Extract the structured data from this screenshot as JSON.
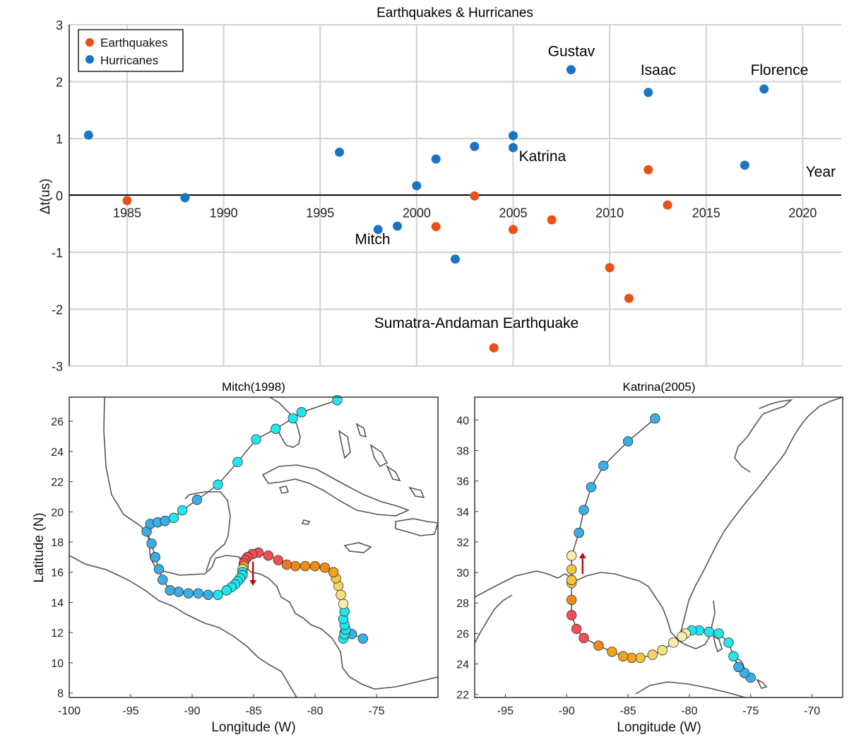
{
  "chart_data": [
    {
      "type": "scatter",
      "title": "Earthquakes & Hurricanes",
      "xlabel": "Year",
      "ylabel": "Δt(us)",
      "xlim": [
        1982,
        2022
      ],
      "ylim": [
        -3,
        3
      ],
      "xticks": [
        1985,
        1990,
        1995,
        2000,
        2005,
        2010,
        2015,
        2020
      ],
      "yticks": [
        -3,
        -2,
        -1,
        0,
        1,
        2,
        3
      ],
      "grid": true,
      "legend_position": "top-left",
      "series": [
        {
          "name": "Earthquakes",
          "color": "#e8511a",
          "points": [
            {
              "x": 1985,
              "y": -0.09
            },
            {
              "x": 2001,
              "y": -0.55
            },
            {
              "x": 2003,
              "y": -0.01
            },
            {
              "x": 2004,
              "y": -2.68
            },
            {
              "x": 2005,
              "y": -0.6
            },
            {
              "x": 2007,
              "y": -0.43
            },
            {
              "x": 2010,
              "y": -1.27
            },
            {
              "x": 2011,
              "y": -1.81
            },
            {
              "x": 2012,
              "y": 0.45
            },
            {
              "x": 2013,
              "y": -0.17
            }
          ]
        },
        {
          "name": "Hurricanes",
          "color": "#1a74c2",
          "points": [
            {
              "x": 1983,
              "y": 1.06
            },
            {
              "x": 1988,
              "y": -0.04
            },
            {
              "x": 1996,
              "y": 0.76
            },
            {
              "x": 1998,
              "y": -0.6
            },
            {
              "x": 1999,
              "y": -0.54
            },
            {
              "x": 2000,
              "y": 0.17
            },
            {
              "x": 2001,
              "y": 0.64
            },
            {
              "x": 2002,
              "y": -1.12
            },
            {
              "x": 2003,
              "y": 0.86
            },
            {
              "x": 2005,
              "y": 1.05
            },
            {
              "x": 2005,
              "y": 0.84
            },
            {
              "x": 2008,
              "y": 2.21
            },
            {
              "x": 2012,
              "y": 1.81
            },
            {
              "x": 2017,
              "y": 0.53
            },
            {
              "x": 2018,
              "y": 1.87
            }
          ]
        }
      ],
      "annotations": [
        {
          "text": "Gustav",
          "x": 2006.8,
          "y": 2.45
        },
        {
          "text": "Isaac",
          "x": 2011.6,
          "y": 2.12
        },
        {
          "text": "Florence",
          "x": 2017.3,
          "y": 2.12
        },
        {
          "text": "Katrina",
          "x": 2005.3,
          "y": 0.6
        },
        {
          "text": "Mitch",
          "x": 1996.8,
          "y": -0.86
        },
        {
          "text": "Sumatra-Andaman Earthquake",
          "x": 1997.8,
          "y": -2.33
        }
      ]
    },
    {
      "type": "line",
      "title": "Mitch(1998)",
      "xlabel": "Longitude (W)",
      "ylabel": "Latitude (N)",
      "xlim": [
        -100,
        -70
      ],
      "ylim": [
        7.7,
        27.6
      ],
      "xticks": [
        -100,
        -95,
        -90,
        -85,
        -80,
        -75
      ],
      "yticks": [
        8,
        10,
        12,
        14,
        16,
        18,
        20,
        22,
        24,
        26
      ],
      "direction_arrow": {
        "x": -85.05,
        "from_y": 16.7,
        "to_y": 15.1
      },
      "track": [
        {
          "lon": -76.1,
          "lat": 11.6,
          "color": "#3aaee6"
        },
        {
          "lon": -77.0,
          "lat": 11.9,
          "color": "#3aaee6"
        },
        {
          "lon": -77.6,
          "lat": 12.0,
          "color": "#3aaee6"
        },
        {
          "lon": -77.7,
          "lat": 11.6,
          "color": "#22e6ee"
        },
        {
          "lon": -77.6,
          "lat": 11.9,
          "color": "#22e6ee"
        },
        {
          "lon": -77.5,
          "lat": 12.2,
          "color": "#22e6ee"
        },
        {
          "lon": -77.6,
          "lat": 12.5,
          "color": "#22e6ee"
        },
        {
          "lon": -77.7,
          "lat": 12.9,
          "color": "#22e6ee"
        },
        {
          "lon": -77.6,
          "lat": 13.4,
          "color": "#22e6ee"
        },
        {
          "lon": -77.7,
          "lat": 13.9,
          "color": "#f7eeae"
        },
        {
          "lon": -77.9,
          "lat": 14.5,
          "color": "#f7e27a"
        },
        {
          "lon": -78.1,
          "lat": 15.1,
          "color": "#f7d36a"
        },
        {
          "lon": -78.3,
          "lat": 15.6,
          "color": "#f6c43c"
        },
        {
          "lon": -78.5,
          "lat": 16.0,
          "color": "#f3a21b"
        },
        {
          "lon": -79.2,
          "lat": 16.3,
          "color": "#f08a12"
        },
        {
          "lon": -80.0,
          "lat": 16.4,
          "color": "#f08a12"
        },
        {
          "lon": -80.8,
          "lat": 16.4,
          "color": "#f08a12"
        },
        {
          "lon": -81.6,
          "lat": 16.4,
          "color": "#f08a12"
        },
        {
          "lon": -82.3,
          "lat": 16.5,
          "color": "#f07828"
        },
        {
          "lon": -83.0,
          "lat": 16.8,
          "color": "#f24f55"
        },
        {
          "lon": -83.8,
          "lat": 17.1,
          "color": "#f24f55"
        },
        {
          "lon": -84.6,
          "lat": 17.3,
          "color": "#f24f55"
        },
        {
          "lon": -85.1,
          "lat": 17.2,
          "color": "#f24f55"
        },
        {
          "lon": -85.5,
          "lat": 17.0,
          "color": "#f24f55"
        },
        {
          "lon": -85.7,
          "lat": 16.8,
          "color": "#f24f55"
        },
        {
          "lon": -85.8,
          "lat": 16.6,
          "color": "#f24f55"
        },
        {
          "lon": -85.8,
          "lat": 16.4,
          "color": "#f3a21b"
        },
        {
          "lon": -85.9,
          "lat": 16.2,
          "color": "#f7e27a"
        },
        {
          "lon": -85.9,
          "lat": 16.0,
          "color": "#22e6ee"
        },
        {
          "lon": -85.9,
          "lat": 15.8,
          "color": "#22e6ee"
        },
        {
          "lon": -86.1,
          "lat": 15.6,
          "color": "#22e6ee"
        },
        {
          "lon": -86.3,
          "lat": 15.4,
          "color": "#22e6ee"
        },
        {
          "lon": -86.5,
          "lat": 15.2,
          "color": "#22e6ee"
        },
        {
          "lon": -86.8,
          "lat": 15.0,
          "color": "#22e6ee"
        },
        {
          "lon": -87.2,
          "lat": 14.8,
          "color": "#22e6ee"
        },
        {
          "lon": -87.9,
          "lat": 14.5,
          "color": "#22e6ee"
        },
        {
          "lon": -88.7,
          "lat": 14.5,
          "color": "#3aaee6"
        },
        {
          "lon": -89.5,
          "lat": 14.6,
          "color": "#3aaee6"
        },
        {
          "lon": -90.3,
          "lat": 14.6,
          "color": "#3aaee6"
        },
        {
          "lon": -91.1,
          "lat": 14.7,
          "color": "#3aaee6"
        },
        {
          "lon": -91.8,
          "lat": 14.8,
          "color": "#3aaee6"
        },
        {
          "lon": -92.4,
          "lat": 15.5,
          "color": "#3aaee6"
        },
        {
          "lon": -92.7,
          "lat": 16.2,
          "color": "#3aaee6"
        },
        {
          "lon": -93.0,
          "lat": 17.0,
          "color": "#3aaee6"
        },
        {
          "lon": -93.3,
          "lat": 17.9,
          "color": "#3aaee6"
        },
        {
          "lon": -93.7,
          "lat": 18.7,
          "color": "#3aaee6"
        },
        {
          "lon": -93.4,
          "lat": 19.2,
          "color": "#3aaee6"
        },
        {
          "lon": -92.8,
          "lat": 19.3,
          "color": "#3aaee6"
        },
        {
          "lon": -92.2,
          "lat": 19.4,
          "color": "#3aaee6"
        },
        {
          "lon": -91.5,
          "lat": 19.6,
          "color": "#22e6ee"
        },
        {
          "lon": -90.8,
          "lat": 20.1,
          "color": "#22e6ee"
        },
        {
          "lon": -89.6,
          "lat": 20.8,
          "color": "#3aaee6"
        },
        {
          "lon": -87.9,
          "lat": 21.8,
          "color": "#22e6ee"
        },
        {
          "lon": -86.3,
          "lat": 23.3,
          "color": "#22e6ee"
        },
        {
          "lon": -84.8,
          "lat": 24.8,
          "color": "#22e6ee"
        },
        {
          "lon": -83.2,
          "lat": 25.5,
          "color": "#22e6ee"
        },
        {
          "lon": -81.8,
          "lat": 26.2,
          "color": "#22e6ee"
        },
        {
          "lon": -81.1,
          "lat": 26.6,
          "color": "#22e6ee"
        },
        {
          "lon": -78.2,
          "lat": 27.4,
          "color": "#22e6ee"
        }
      ]
    },
    {
      "type": "line",
      "title": "Katrina(2005)",
      "xlabel": "Longitude (W)",
      "ylabel": "",
      "xlim": [
        -97.5,
        -67.5
      ],
      "ylim": [
        21.8,
        41.5
      ],
      "xticks": [
        -95,
        -90,
        -85,
        -80,
        -75,
        -70
      ],
      "yticks": [
        22,
        24,
        26,
        28,
        30,
        32,
        34,
        36,
        38,
        40
      ],
      "direction_arrow": {
        "x": -88.7,
        "from_y": 29.9,
        "to_y": 31.3
      },
      "track": [
        {
          "lon": -75.0,
          "lat": 23.1,
          "color": "#3aaee6"
        },
        {
          "lon": -75.5,
          "lat": 23.4,
          "color": "#3aaee6"
        },
        {
          "lon": -76.0,
          "lat": 23.8,
          "color": "#3aaee6"
        },
        {
          "lon": -76.4,
          "lat": 24.5,
          "color": "#22e6ee"
        },
        {
          "lon": -76.8,
          "lat": 25.4,
          "color": "#22e6ee"
        },
        {
          "lon": -77.6,
          "lat": 26.0,
          "color": "#22e6ee"
        },
        {
          "lon": -78.4,
          "lat": 26.1,
          "color": "#22e6ee"
        },
        {
          "lon": -79.2,
          "lat": 26.2,
          "color": "#22e6ee"
        },
        {
          "lon": -79.8,
          "lat": 26.2,
          "color": "#22e6ee"
        },
        {
          "lon": -80.3,
          "lat": 26.0,
          "color": "#f7eeae"
        },
        {
          "lon": -80.6,
          "lat": 25.8,
          "color": "#f7eeae"
        },
        {
          "lon": -81.3,
          "lat": 25.4,
          "color": "#f7eeae"
        },
        {
          "lon": -82.2,
          "lat": 24.9,
          "color": "#f7e27a"
        },
        {
          "lon": -83.0,
          "lat": 24.6,
          "color": "#f7d36a"
        },
        {
          "lon": -84.0,
          "lat": 24.4,
          "color": "#f6c43c"
        },
        {
          "lon": -84.7,
          "lat": 24.4,
          "color": "#f3a21b"
        },
        {
          "lon": -85.4,
          "lat": 24.5,
          "color": "#f3a21b"
        },
        {
          "lon": -86.3,
          "lat": 24.8,
          "color": "#f3a21b"
        },
        {
          "lon": -87.4,
          "lat": 25.2,
          "color": "#f08a12"
        },
        {
          "lon": -88.6,
          "lat": 25.7,
          "color": "#f24f55"
        },
        {
          "lon": -89.2,
          "lat": 26.3,
          "color": "#f24f55"
        },
        {
          "lon": -89.6,
          "lat": 27.2,
          "color": "#f24f55"
        },
        {
          "lon": -89.6,
          "lat": 28.2,
          "color": "#f08a12"
        },
        {
          "lon": -89.6,
          "lat": 29.3,
          "color": "#f6c43c"
        },
        {
          "lon": -89.6,
          "lat": 29.5,
          "color": "#f6c43c"
        },
        {
          "lon": -89.6,
          "lat": 30.2,
          "color": "#f6c43c"
        },
        {
          "lon": -89.6,
          "lat": 31.1,
          "color": "#f7eeae"
        },
        {
          "lon": -89.0,
          "lat": 32.6,
          "color": "#3aaee6"
        },
        {
          "lon": -88.6,
          "lat": 34.1,
          "color": "#3aaee6"
        },
        {
          "lon": -88.0,
          "lat": 35.6,
          "color": "#3aaee6"
        },
        {
          "lon": -87.0,
          "lat": 37.0,
          "color": "#3aaee6"
        },
        {
          "lon": -85.0,
          "lat": 38.6,
          "color": "#3aaee6"
        },
        {
          "lon": -82.8,
          "lat": 40.1,
          "color": "#3aaee6"
        }
      ]
    }
  ]
}
